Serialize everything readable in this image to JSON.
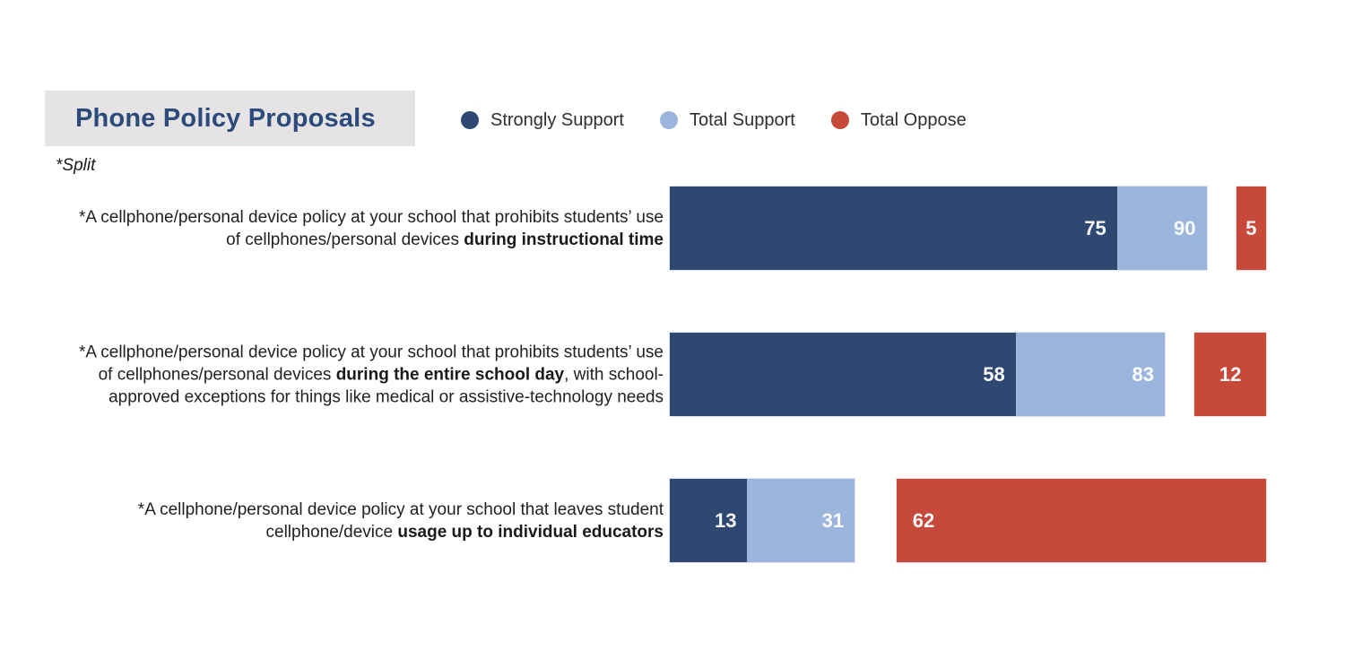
{
  "title": "Phone Policy Proposals",
  "split_note": "*Split",
  "colors": {
    "strongly_support": "#2f4871",
    "total_support": "#9cb5dd",
    "total_oppose": "#c6493a",
    "title_text": "#2c4a7c",
    "title_background": "#e5e3e3"
  },
  "legend": [
    {
      "label": "Strongly Support",
      "color": "#2f4871"
    },
    {
      "label": "Total Support",
      "color": "#9cb5dd"
    },
    {
      "label": "Total Oppose",
      "color": "#c6493a"
    }
  ],
  "rows": [
    {
      "label_parts": [
        {
          "t": "*A cellphone/personal device policy at your school that prohibits students’ use of cellphones/personal devices ",
          "b": false
        },
        {
          "t": "during instructional time",
          "b": true
        }
      ],
      "strongly_support": 75,
      "total_support": 90,
      "total_oppose": 5
    },
    {
      "label_parts": [
        {
          "t": "*A cellphone/personal device policy at your school that prohibits students’ use of cellphones/personal devices ",
          "b": false
        },
        {
          "t": "during the entire school day",
          "b": true
        },
        {
          "t": ", with school-approved exceptions for things like medical or assistive-technology needs",
          "b": false
        }
      ],
      "strongly_support": 58,
      "total_support": 83,
      "total_oppose": 12
    },
    {
      "label_parts": [
        {
          "t": "*A cellphone/personal device policy at your school that leaves student cellphone/device ",
          "b": false
        },
        {
          "t": "usage up to individual educators",
          "b": true
        }
      ],
      "strongly_support": 13,
      "total_support": 31,
      "total_oppose": 62
    }
  ],
  "chart_data": {
    "type": "bar",
    "orientation": "horizontal",
    "title": "Phone Policy Proposals",
    "categories": [
      "*A cellphone/personal device policy at your school that prohibits students’ use of cellphones/personal devices during instructional time",
      "*A cellphone/personal device policy at your school that prohibits students’ use of cellphones/personal devices during the entire school day, with school-approved exceptions for things like medical or assistive-technology needs",
      "*A cellphone/personal device policy at your school that leaves student cellphone/device usage up to individual educators"
    ],
    "series": [
      {
        "name": "Strongly Support",
        "values": [
          75,
          58,
          13
        ],
        "color": "#2f4871",
        "anchor": "left"
      },
      {
        "name": "Total Support",
        "values": [
          90,
          83,
          31
        ],
        "color": "#9cb5dd",
        "anchor": "left",
        "note": "cumulative with Strongly Support; drawn as stacked extension"
      },
      {
        "name": "Total Oppose",
        "values": [
          5,
          12,
          62
        ],
        "color": "#c6493a",
        "anchor": "right"
      }
    ],
    "xlim": [
      0,
      100
    ],
    "grid": false,
    "legend_position": "top",
    "annotation": "*Split"
  }
}
